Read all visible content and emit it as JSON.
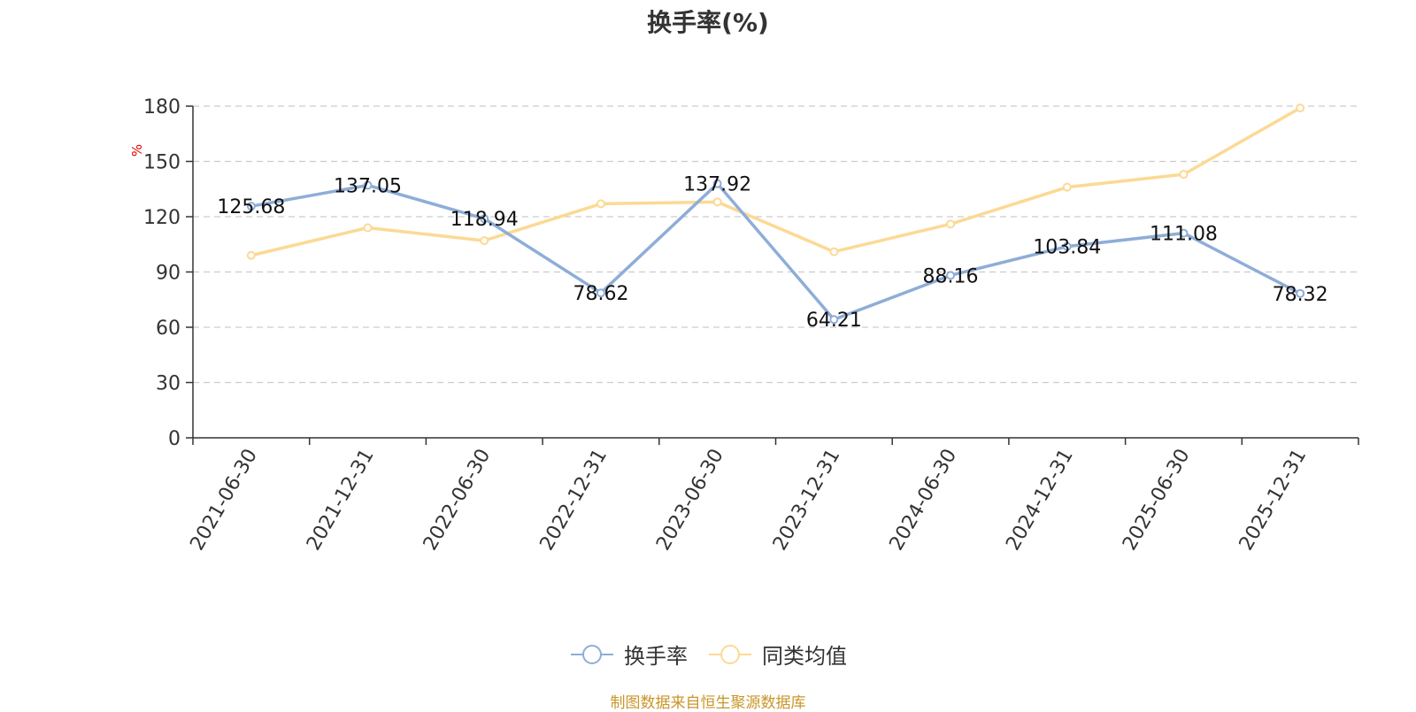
{
  "chart_data": {
    "type": "line",
    "title": "换手率(%)",
    "ylabel": "%",
    "xlabel": "",
    "ylim": [
      0,
      180
    ],
    "yticks": [
      0,
      30,
      60,
      90,
      120,
      150,
      180
    ],
    "grid": true,
    "legend_position": "bottom",
    "categories": [
      "2021-06-30",
      "2021-12-31",
      "2022-06-30",
      "2022-12-31",
      "2023-06-30",
      "2023-12-31",
      "2024-06-30",
      "2024-12-31",
      "2025-06-30",
      "2025-12-31"
    ],
    "series": [
      {
        "name": "换手率",
        "color": "#8eadd8",
        "values": [
          125.68,
          137.05,
          118.94,
          78.62,
          137.92,
          64.21,
          88.16,
          103.84,
          111.08,
          78.32
        ],
        "data_labels": [
          "125.68",
          "137.05",
          "118.94",
          "78.62",
          "137.92",
          "64.21",
          "88.16",
          "103.84",
          "111.08",
          "78.32"
        ]
      },
      {
        "name": "同类均值",
        "color": "#fcd994",
        "values": [
          99,
          114,
          107,
          127,
          128,
          101,
          116,
          136,
          143,
          179
        ]
      }
    ]
  },
  "source_note": "制图数据来自恒生聚源数据库"
}
